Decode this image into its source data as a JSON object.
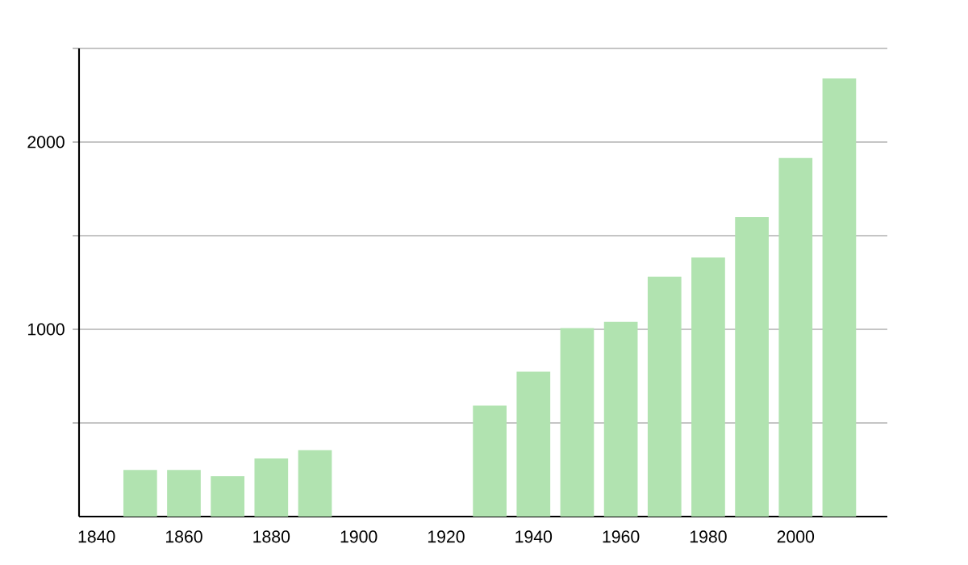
{
  "chart_data": {
    "type": "bar",
    "x": [
      1850,
      1860,
      1870,
      1880,
      1890,
      1930,
      1940,
      1950,
      1960,
      1970,
      1980,
      1990,
      2000,
      2010
    ],
    "values": [
      249,
      249,
      215,
      310,
      355,
      593,
      774,
      1006,
      1040,
      1281,
      1384,
      1599,
      1915,
      2339
    ],
    "color": "#b1e3b0",
    "xlim": [
      1836,
      2021
    ],
    "xticks": [
      1840,
      1860,
      1880,
      1900,
      1920,
      1940,
      1960,
      1980,
      2000
    ],
    "ylim": [
      0,
      2500
    ],
    "yticks": [
      {
        "value": 500,
        "label": null
      },
      1000,
      {
        "value": 1500,
        "label": null
      },
      2000,
      {
        "value": 2500,
        "label": null
      }
    ],
    "grid": "y",
    "tick_labels": true
  }
}
